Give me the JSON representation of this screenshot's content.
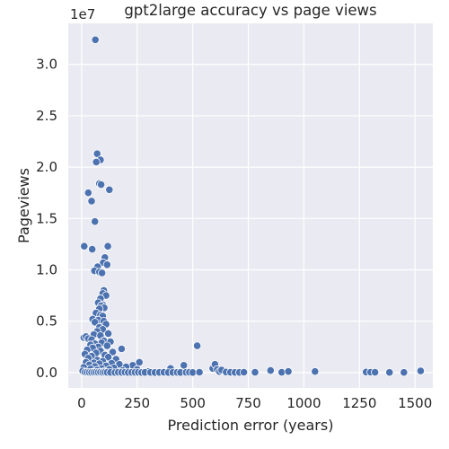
{
  "chart_data": {
    "type": "scatter",
    "title": "gpt2large accuracy vs page views",
    "xlabel": "Prediction error (years)",
    "ylabel": "Pageviews",
    "y_offset_label": "1e7",
    "xlim": [
      -60,
      1580
    ],
    "ylim": [
      -1500000,
      34000000
    ],
    "x_ticks": [
      0,
      250,
      500,
      750,
      1000,
      1250,
      1500
    ],
    "y_ticks": [
      0,
      5000000,
      10000000,
      15000000,
      20000000,
      25000000,
      30000000
    ],
    "y_tick_labels": [
      "0.0",
      "0.5",
      "1.0",
      "1.5",
      "2.0",
      "2.5",
      "3.0"
    ],
    "grid": true,
    "background": "#eaeaf2",
    "marker_color": "#4c72b0",
    "points": [
      [
        62,
        32400000
      ],
      [
        70,
        21300000
      ],
      [
        85,
        20700000
      ],
      [
        66,
        20500000
      ],
      [
        80,
        18400000
      ],
      [
        88,
        18300000
      ],
      [
        125,
        17800000
      ],
      [
        30,
        17500000
      ],
      [
        45,
        16700000
      ],
      [
        60,
        14700000
      ],
      [
        12,
        12300000
      ],
      [
        118,
        12300000
      ],
      [
        48,
        12000000
      ],
      [
        105,
        11200000
      ],
      [
        97,
        10700000
      ],
      [
        115,
        10500000
      ],
      [
        72,
        10300000
      ],
      [
        58,
        9900000
      ],
      [
        80,
        9800000
      ],
      [
        92,
        9700000
      ],
      [
        100,
        8000000
      ],
      [
        95,
        7700000
      ],
      [
        110,
        7500000
      ],
      [
        85,
        7200000
      ],
      [
        75,
        6800000
      ],
      [
        95,
        6600000
      ],
      [
        88,
        6500000
      ],
      [
        102,
        6300000
      ],
      [
        80,
        6200000
      ],
      [
        65,
        5800000
      ],
      [
        85,
        5600000
      ],
      [
        95,
        5500000
      ],
      [
        50,
        5200000
      ],
      [
        75,
        5100000
      ],
      [
        100,
        5000000
      ],
      [
        60,
        4900000
      ],
      [
        110,
        4700000
      ],
      [
        80,
        4400000
      ],
      [
        95,
        4200000
      ],
      [
        70,
        4000000
      ],
      [
        120,
        3800000
      ],
      [
        55,
        3700000
      ],
      [
        85,
        3600000
      ],
      [
        10,
        3400000
      ],
      [
        20,
        3500000
      ],
      [
        30,
        3300000
      ],
      [
        45,
        3200000
      ],
      [
        100,
        3100000
      ],
      [
        130,
        3000000
      ],
      [
        90,
        2900000
      ],
      [
        60,
        2800000
      ],
      [
        40,
        2700000
      ],
      [
        115,
        2600000
      ],
      [
        75,
        2500000
      ],
      [
        50,
        2400000
      ],
      [
        180,
        2300000
      ],
      [
        25,
        2200000
      ],
      [
        85,
        2100000
      ],
      [
        140,
        2000000
      ],
      [
        65,
        1900000
      ],
      [
        15,
        1800000
      ],
      [
        105,
        1700000
      ],
      [
        45,
        1600000
      ],
      [
        120,
        1500000
      ],
      [
        30,
        1400000
      ],
      [
        155,
        1300000
      ],
      [
        70,
        1200000
      ],
      [
        95,
        1100000
      ],
      [
        20,
        1000000
      ],
      [
        260,
        1000000
      ],
      [
        55,
        950000
      ],
      [
        135,
        900000
      ],
      [
        80,
        850000
      ],
      [
        170,
        800000
      ],
      [
        35,
        750000
      ],
      [
        230,
        700000
      ],
      [
        110,
        650000
      ],
      [
        60,
        600000
      ],
      [
        200,
        550000
      ],
      [
        10,
        500000
      ],
      [
        145,
        450000
      ],
      [
        90,
        400000
      ],
      [
        400,
        400000
      ],
      [
        40,
        350000
      ],
      [
        125,
        300000
      ],
      [
        250,
        300000
      ],
      [
        70,
        250000
      ],
      [
        185,
        200000
      ],
      [
        5,
        150000
      ],
      [
        100,
        100000
      ],
      [
        300,
        100000
      ],
      [
        50,
        50000
      ],
      [
        15,
        30000
      ],
      [
        25,
        20000
      ],
      [
        35,
        10000
      ],
      [
        45,
        5000
      ],
      [
        55,
        15000
      ],
      [
        65,
        25000
      ],
      [
        75,
        10000
      ],
      [
        85,
        30000
      ],
      [
        95,
        5000
      ],
      [
        105,
        20000
      ],
      [
        115,
        15000
      ],
      [
        130,
        10000
      ],
      [
        150,
        5000
      ],
      [
        165,
        20000
      ],
      [
        180,
        10000
      ],
      [
        195,
        30000
      ],
      [
        210,
        5000
      ],
      [
        225,
        15000
      ],
      [
        240,
        10000
      ],
      [
        255,
        20000
      ],
      [
        270,
        5000
      ],
      [
        285,
        10000
      ],
      [
        310,
        15000
      ],
      [
        330,
        5000
      ],
      [
        350,
        10000
      ],
      [
        370,
        20000
      ],
      [
        390,
        5000
      ],
      [
        410,
        10000
      ],
      [
        430,
        15000
      ],
      [
        445,
        5000
      ],
      [
        460,
        700000
      ],
      [
        470,
        10000
      ],
      [
        485,
        20000
      ],
      [
        500,
        5000
      ],
      [
        520,
        2600000
      ],
      [
        530,
        30000
      ],
      [
        590,
        400000
      ],
      [
        600,
        800000
      ],
      [
        610,
        300000
      ],
      [
        620,
        100000
      ],
      [
        630,
        250000
      ],
      [
        650,
        50000
      ],
      [
        670,
        20000
      ],
      [
        690,
        10000
      ],
      [
        710,
        10000
      ],
      [
        730,
        30000
      ],
      [
        780,
        20000
      ],
      [
        850,
        200000
      ],
      [
        900,
        20000
      ],
      [
        930,
        100000
      ],
      [
        1050,
        100000
      ],
      [
        1280,
        50000
      ],
      [
        1300,
        30000
      ],
      [
        1320,
        20000
      ],
      [
        1385,
        10000
      ],
      [
        1450,
        10000
      ],
      [
        1525,
        150000
      ]
    ]
  }
}
